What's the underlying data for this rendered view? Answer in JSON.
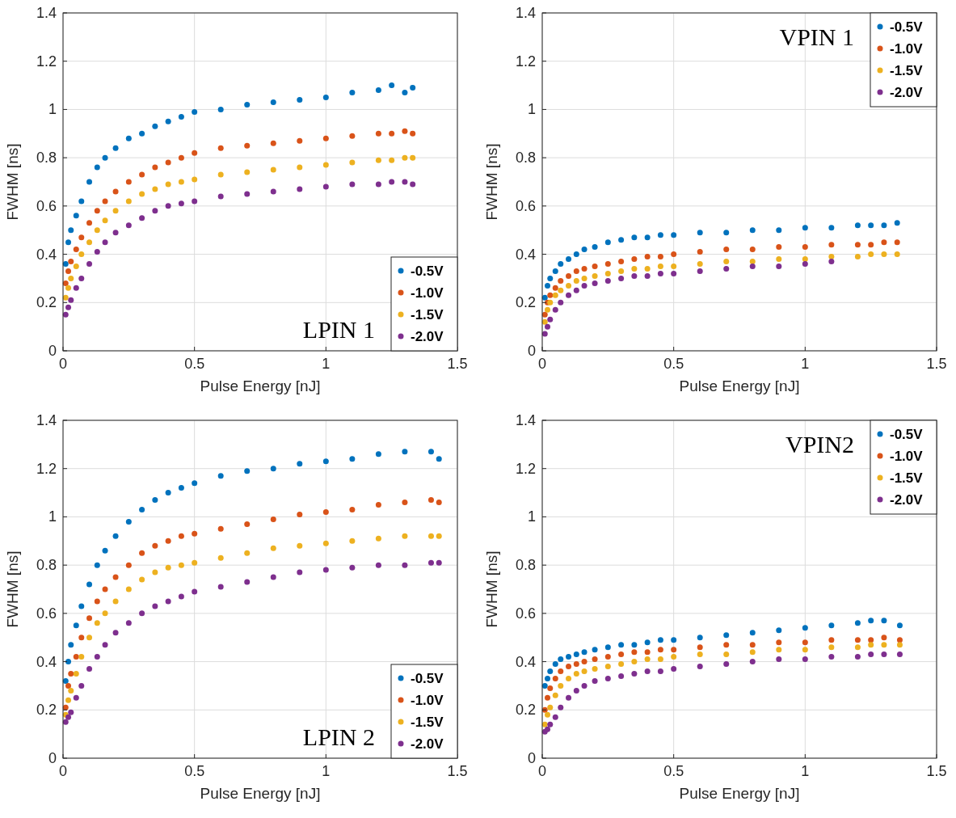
{
  "chart_data": [
    {
      "type": "scatter",
      "xlabel": "Pulse Energy [nJ]",
      "ylabel": "FWHM [ns]",
      "annotations": [
        "LPIN 1"
      ],
      "xlim": [
        0,
        1.5
      ],
      "ylim": [
        0,
        1.4
      ],
      "xticks": [
        0,
        0.5,
        1,
        1.5
      ],
      "yticks": [
        0,
        0.2,
        0.4,
        0.6,
        0.8,
        1,
        1.2,
        1.4
      ],
      "grid": true,
      "legend": "bottom right",
      "marker": "circle",
      "x": [
        0.01,
        0.02,
        0.03,
        0.05,
        0.07,
        0.1,
        0.13,
        0.16,
        0.2,
        0.25,
        0.3,
        0.35,
        0.4,
        0.45,
        0.5,
        0.6,
        0.7,
        0.8,
        0.9,
        1.0,
        1.1,
        1.2,
        1.25,
        1.3,
        1.33
      ],
      "series": [
        {
          "name": "-0.5V",
          "color": "#0072bd",
          "values": [
            0.36,
            0.45,
            0.5,
            0.56,
            0.62,
            0.7,
            0.76,
            0.8,
            0.84,
            0.88,
            0.9,
            0.93,
            0.95,
            0.97,
            0.99,
            1.0,
            1.02,
            1.03,
            1.04,
            1.05,
            1.07,
            1.08,
            1.1,
            1.07,
            1.09
          ]
        },
        {
          "name": "-1.0V",
          "color": "#d95319",
          "values": [
            0.28,
            0.33,
            0.37,
            0.42,
            0.47,
            0.53,
            0.58,
            0.62,
            0.66,
            0.7,
            0.73,
            0.76,
            0.78,
            0.8,
            0.82,
            0.84,
            0.85,
            0.86,
            0.87,
            0.88,
            0.89,
            0.9,
            0.9,
            0.91,
            0.9
          ]
        },
        {
          "name": "-1.5V",
          "color": "#edb120",
          "values": [
            0.22,
            0.26,
            0.3,
            0.35,
            0.4,
            0.45,
            0.5,
            0.54,
            0.58,
            0.62,
            0.65,
            0.67,
            0.69,
            0.7,
            0.71,
            0.73,
            0.74,
            0.75,
            0.76,
            0.77,
            0.78,
            0.79,
            0.79,
            0.8,
            0.8
          ]
        },
        {
          "name": "-2.0V",
          "color": "#7e2f8e",
          "values": [
            0.15,
            0.18,
            0.21,
            0.26,
            0.3,
            0.36,
            0.41,
            0.45,
            0.49,
            0.52,
            0.55,
            0.58,
            0.6,
            0.61,
            0.62,
            0.64,
            0.65,
            0.66,
            0.67,
            0.68,
            0.69,
            0.69,
            0.7,
            0.7,
            0.69
          ]
        }
      ]
    },
    {
      "type": "scatter",
      "xlabel": "Pulse Energy [nJ]",
      "ylabel": "FWHM [ns]",
      "annotations": [
        "VPIN 1"
      ],
      "xlim": [
        0,
        1.5
      ],
      "ylim": [
        0,
        1.4
      ],
      "xticks": [
        0,
        0.5,
        1,
        1.5
      ],
      "yticks": [
        0,
        0.2,
        0.4,
        0.6,
        0.8,
        1,
        1.2,
        1.4
      ],
      "grid": true,
      "legend": "top right",
      "marker": "circle",
      "x": [
        0.01,
        0.02,
        0.03,
        0.05,
        0.07,
        0.1,
        0.13,
        0.16,
        0.2,
        0.25,
        0.3,
        0.35,
        0.4,
        0.45,
        0.5,
        0.6,
        0.7,
        0.8,
        0.9,
        1.0,
        1.1,
        1.2,
        1.25,
        1.3,
        1.35
      ],
      "series": [
        {
          "name": "-0.5V",
          "color": "#0072bd",
          "values": [
            0.22,
            0.27,
            0.3,
            0.33,
            0.36,
            0.38,
            0.4,
            0.42,
            0.43,
            0.45,
            0.46,
            0.47,
            0.47,
            0.48,
            0.48,
            0.49,
            0.49,
            0.5,
            0.5,
            0.51,
            0.51,
            0.52,
            0.52,
            0.52,
            0.53
          ]
        },
        {
          "name": "-1.0V",
          "color": "#d95319",
          "values": [
            0.15,
            0.2,
            0.23,
            0.26,
            0.29,
            0.31,
            0.33,
            0.34,
            0.35,
            0.36,
            0.37,
            0.38,
            0.39,
            0.39,
            0.4,
            0.41,
            0.42,
            0.42,
            0.43,
            0.43,
            0.44,
            0.44,
            0.44,
            0.45,
            0.45
          ]
        },
        {
          "name": "-1.5V",
          "color": "#edb120",
          "values": [
            0.12,
            0.17,
            0.2,
            0.23,
            0.25,
            0.27,
            0.29,
            0.3,
            0.31,
            0.32,
            0.33,
            0.34,
            0.34,
            0.35,
            0.35,
            0.36,
            0.37,
            0.37,
            0.38,
            0.38,
            0.39,
            0.39,
            0.4,
            0.4,
            0.4
          ]
        },
        {
          "name": "-2.0V",
          "color": "#7e2f8e",
          "values": [
            0.07,
            0.1,
            0.13,
            0.17,
            0.2,
            0.23,
            0.25,
            0.27,
            0.28,
            0.29,
            0.3,
            0.31,
            0.31,
            0.32,
            0.32,
            0.33,
            0.34,
            0.35,
            0.35,
            0.36,
            0.37,
            null,
            null,
            null,
            null
          ]
        }
      ]
    },
    {
      "type": "scatter",
      "xlabel": "Pulse Energy [nJ]",
      "ylabel": "FWHM [ns]",
      "annotations": [
        "LPIN 2"
      ],
      "xlim": [
        0,
        1.5
      ],
      "ylim": [
        0,
        1.4
      ],
      "xticks": [
        0,
        0.5,
        1,
        1.5
      ],
      "yticks": [
        0,
        0.2,
        0.4,
        0.6,
        0.8,
        1,
        1.2,
        1.4
      ],
      "grid": true,
      "legend": "bottom right",
      "marker": "circle",
      "x": [
        0.01,
        0.02,
        0.03,
        0.05,
        0.07,
        0.1,
        0.13,
        0.16,
        0.2,
        0.25,
        0.3,
        0.35,
        0.4,
        0.45,
        0.5,
        0.6,
        0.7,
        0.8,
        0.9,
        1.0,
        1.1,
        1.2,
        1.3,
        1.4,
        1.43
      ],
      "series": [
        {
          "name": "-0.5V",
          "color": "#0072bd",
          "values": [
            0.32,
            0.4,
            0.47,
            0.55,
            0.63,
            0.72,
            0.8,
            0.86,
            0.92,
            0.98,
            1.03,
            1.07,
            1.1,
            1.12,
            1.14,
            1.17,
            1.19,
            1.2,
            1.22,
            1.23,
            1.24,
            1.26,
            1.27,
            1.27,
            1.24
          ]
        },
        {
          "name": "-1.0V",
          "color": "#d95319",
          "values": [
            0.21,
            0.3,
            0.35,
            0.42,
            0.5,
            0.58,
            0.65,
            0.7,
            0.75,
            0.8,
            0.85,
            0.88,
            0.9,
            0.92,
            0.93,
            0.95,
            0.97,
            0.99,
            1.01,
            1.02,
            1.03,
            1.05,
            1.06,
            1.07,
            1.06
          ]
        },
        {
          "name": "-1.5V",
          "color": "#edb120",
          "values": [
            0.18,
            0.24,
            0.28,
            0.35,
            0.42,
            0.5,
            0.56,
            0.6,
            0.65,
            0.7,
            0.74,
            0.77,
            0.79,
            0.8,
            0.81,
            0.83,
            0.85,
            0.87,
            0.88,
            0.89,
            0.9,
            0.91,
            0.92,
            0.92,
            0.92
          ]
        },
        {
          "name": "-2.0V",
          "color": "#7e2f8e",
          "values": [
            0.15,
            0.17,
            0.19,
            0.25,
            0.3,
            0.37,
            0.42,
            0.47,
            0.52,
            0.56,
            0.6,
            0.63,
            0.65,
            0.67,
            0.69,
            0.71,
            0.73,
            0.75,
            0.77,
            0.78,
            0.79,
            0.8,
            0.8,
            0.81,
            0.81
          ]
        }
      ]
    },
    {
      "type": "scatter",
      "xlabel": "Pulse Energy [nJ]",
      "ylabel": "FWHM [ns]",
      "annotations": [
        "VPIN2"
      ],
      "xlim": [
        0,
        1.5
      ],
      "ylim": [
        0,
        1.4
      ],
      "xticks": [
        0,
        0.5,
        1,
        1.5
      ],
      "yticks": [
        0,
        0.2,
        0.4,
        0.6,
        0.8,
        1,
        1.2,
        1.4
      ],
      "grid": true,
      "legend": "top right",
      "marker": "circle",
      "x": [
        0.01,
        0.02,
        0.03,
        0.05,
        0.07,
        0.1,
        0.13,
        0.16,
        0.2,
        0.25,
        0.3,
        0.35,
        0.4,
        0.45,
        0.5,
        0.6,
        0.7,
        0.8,
        0.9,
        1.0,
        1.1,
        1.2,
        1.25,
        1.3,
        1.36
      ],
      "series": [
        {
          "name": "-0.5V",
          "color": "#0072bd",
          "values": [
            0.3,
            0.33,
            0.36,
            0.39,
            0.41,
            0.42,
            0.43,
            0.44,
            0.45,
            0.46,
            0.47,
            0.47,
            0.48,
            0.49,
            0.49,
            0.5,
            0.51,
            0.52,
            0.53,
            0.54,
            0.55,
            0.56,
            0.57,
            0.57,
            0.55
          ]
        },
        {
          "name": "-1.0V",
          "color": "#d95319",
          "values": [
            0.2,
            0.25,
            0.29,
            0.33,
            0.36,
            0.38,
            0.39,
            0.4,
            0.41,
            0.42,
            0.43,
            0.44,
            0.44,
            0.45,
            0.45,
            0.46,
            0.47,
            0.47,
            0.48,
            0.48,
            0.49,
            0.49,
            0.49,
            0.5,
            0.49
          ]
        },
        {
          "name": "-1.5V",
          "color": "#edb120",
          "values": [
            0.14,
            0.18,
            0.21,
            0.26,
            0.3,
            0.33,
            0.35,
            0.36,
            0.37,
            0.38,
            0.39,
            0.4,
            0.41,
            0.41,
            0.42,
            0.43,
            0.43,
            0.44,
            0.45,
            0.45,
            0.46,
            0.46,
            0.47,
            0.47,
            0.47
          ]
        },
        {
          "name": "-2.0V",
          "color": "#7e2f8e",
          "values": [
            0.11,
            0.12,
            0.14,
            0.17,
            0.21,
            0.25,
            0.28,
            0.3,
            0.32,
            0.33,
            0.34,
            0.35,
            0.36,
            0.36,
            0.37,
            0.38,
            0.39,
            0.4,
            0.41,
            0.41,
            0.42,
            0.42,
            0.43,
            0.43,
            0.43
          ]
        }
      ]
    }
  ]
}
